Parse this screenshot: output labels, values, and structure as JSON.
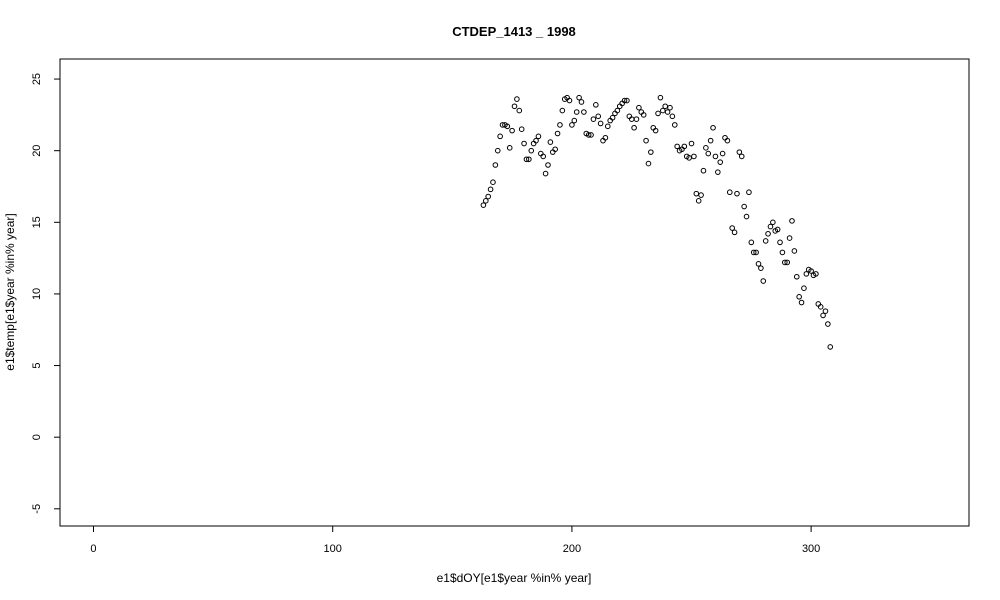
{
  "chart_data": {
    "type": "scatter",
    "title": "CTDEP_1413 _ 1998",
    "xlabel": "e1$dOY[e1$year %in% year]",
    "ylabel": "e1$temp[e1$year %in% year]",
    "xlim": [
      -14,
      366
    ],
    "ylim": [
      -6.2,
      26.4
    ],
    "xticks": [
      0,
      100,
      200,
      300
    ],
    "yticks": [
      -5,
      0,
      5,
      10,
      15,
      20,
      25
    ],
    "grid": false,
    "points": [
      [
        163,
        16.2
      ],
      [
        164,
        16.5
      ],
      [
        165,
        16.8
      ],
      [
        166,
        17.3
      ],
      [
        167,
        17.8
      ],
      [
        168,
        19.0
      ],
      [
        169,
        20.0
      ],
      [
        170,
        21.0
      ],
      [
        171,
        21.8
      ],
      [
        172,
        21.8
      ],
      [
        173,
        21.7
      ],
      [
        174,
        20.2
      ],
      [
        175,
        21.4
      ],
      [
        176,
        23.1
      ],
      [
        177,
        23.6
      ],
      [
        178,
        22.8
      ],
      [
        179,
        21.5
      ],
      [
        180,
        20.5
      ],
      [
        181,
        19.4
      ],
      [
        182,
        19.4
      ],
      [
        183,
        20.0
      ],
      [
        184,
        20.5
      ],
      [
        185,
        20.7
      ],
      [
        186,
        21.0
      ],
      [
        187,
        19.8
      ],
      [
        188,
        19.6
      ],
      [
        189,
        18.4
      ],
      [
        190,
        19.0
      ],
      [
        191,
        20.6
      ],
      [
        192,
        19.9
      ],
      [
        193,
        20.1
      ],
      [
        194,
        21.2
      ],
      [
        195,
        21.8
      ],
      [
        196,
        22.8
      ],
      [
        197,
        23.6
      ],
      [
        198,
        23.7
      ],
      [
        199,
        23.5
      ],
      [
        200,
        21.8
      ],
      [
        201,
        22.1
      ],
      [
        202,
        22.7
      ],
      [
        203,
        23.7
      ],
      [
        204,
        23.4
      ],
      [
        205,
        22.7
      ],
      [
        206,
        21.2
      ],
      [
        207,
        21.1
      ],
      [
        208,
        21.1
      ],
      [
        209,
        22.2
      ],
      [
        210,
        23.2
      ],
      [
        211,
        22.4
      ],
      [
        212,
        21.9
      ],
      [
        213,
        20.7
      ],
      [
        214,
        20.9
      ],
      [
        215,
        21.7
      ],
      [
        216,
        22.1
      ],
      [
        217,
        22.3
      ],
      [
        218,
        22.6
      ],
      [
        219,
        22.8
      ],
      [
        220,
        23.1
      ],
      [
        221,
        23.3
      ],
      [
        222,
        23.5
      ],
      [
        223,
        23.5
      ],
      [
        224,
        22.4
      ],
      [
        225,
        22.2
      ],
      [
        226,
        21.6
      ],
      [
        227,
        22.2
      ],
      [
        228,
        23.0
      ],
      [
        229,
        22.7
      ],
      [
        230,
        22.5
      ],
      [
        231,
        20.7
      ],
      [
        232,
        19.1
      ],
      [
        233,
        19.9
      ],
      [
        234,
        21.6
      ],
      [
        235,
        21.4
      ],
      [
        236,
        22.6
      ],
      [
        237,
        23.7
      ],
      [
        238,
        22.8
      ],
      [
        239,
        23.1
      ],
      [
        240,
        22.7
      ],
      [
        241,
        23.0
      ],
      [
        242,
        22.4
      ],
      [
        243,
        21.8
      ],
      [
        244,
        20.3
      ],
      [
        245,
        20.0
      ],
      [
        246,
        20.1
      ],
      [
        247,
        20.3
      ],
      [
        248,
        19.6
      ],
      [
        249,
        19.5
      ],
      [
        250,
        20.5
      ],
      [
        251,
        19.6
      ],
      [
        252,
        17.0
      ],
      [
        253,
        16.5
      ],
      [
        254,
        16.9
      ],
      [
        255,
        18.6
      ],
      [
        256,
        20.2
      ],
      [
        257,
        19.8
      ],
      [
        258,
        20.7
      ],
      [
        259,
        21.6
      ],
      [
        260,
        19.6
      ],
      [
        261,
        18.5
      ],
      [
        262,
        19.2
      ],
      [
        263,
        19.8
      ],
      [
        264,
        20.9
      ],
      [
        265,
        20.7
      ],
      [
        266,
        17.1
      ],
      [
        267,
        14.6
      ],
      [
        268,
        14.3
      ],
      [
        269,
        17.0
      ],
      [
        270,
        19.9
      ],
      [
        271,
        19.6
      ],
      [
        272,
        16.1
      ],
      [
        273,
        15.4
      ],
      [
        274,
        17.1
      ],
      [
        275,
        13.6
      ],
      [
        276,
        12.9
      ],
      [
        277,
        12.9
      ],
      [
        278,
        12.1
      ],
      [
        279,
        11.8
      ],
      [
        280,
        10.9
      ],
      [
        281,
        13.7
      ],
      [
        282,
        14.2
      ],
      [
        283,
        14.7
      ],
      [
        284,
        15.0
      ],
      [
        285,
        14.4
      ],
      [
        286,
        14.5
      ],
      [
        287,
        13.6
      ],
      [
        288,
        12.9
      ],
      [
        289,
        12.2
      ],
      [
        290,
        12.2
      ],
      [
        291,
        13.9
      ],
      [
        292,
        15.1
      ],
      [
        293,
        13.0
      ],
      [
        294,
        11.2
      ],
      [
        295,
        9.8
      ],
      [
        296,
        9.4
      ],
      [
        297,
        10.4
      ],
      [
        298,
        11.4
      ],
      [
        299,
        11.7
      ],
      [
        300,
        11.6
      ],
      [
        301,
        11.3
      ],
      [
        302,
        11.4
      ],
      [
        303,
        9.3
      ],
      [
        304,
        9.1
      ],
      [
        305,
        8.5
      ],
      [
        306,
        8.8
      ],
      [
        307,
        7.9
      ],
      [
        308,
        6.3
      ]
    ]
  }
}
